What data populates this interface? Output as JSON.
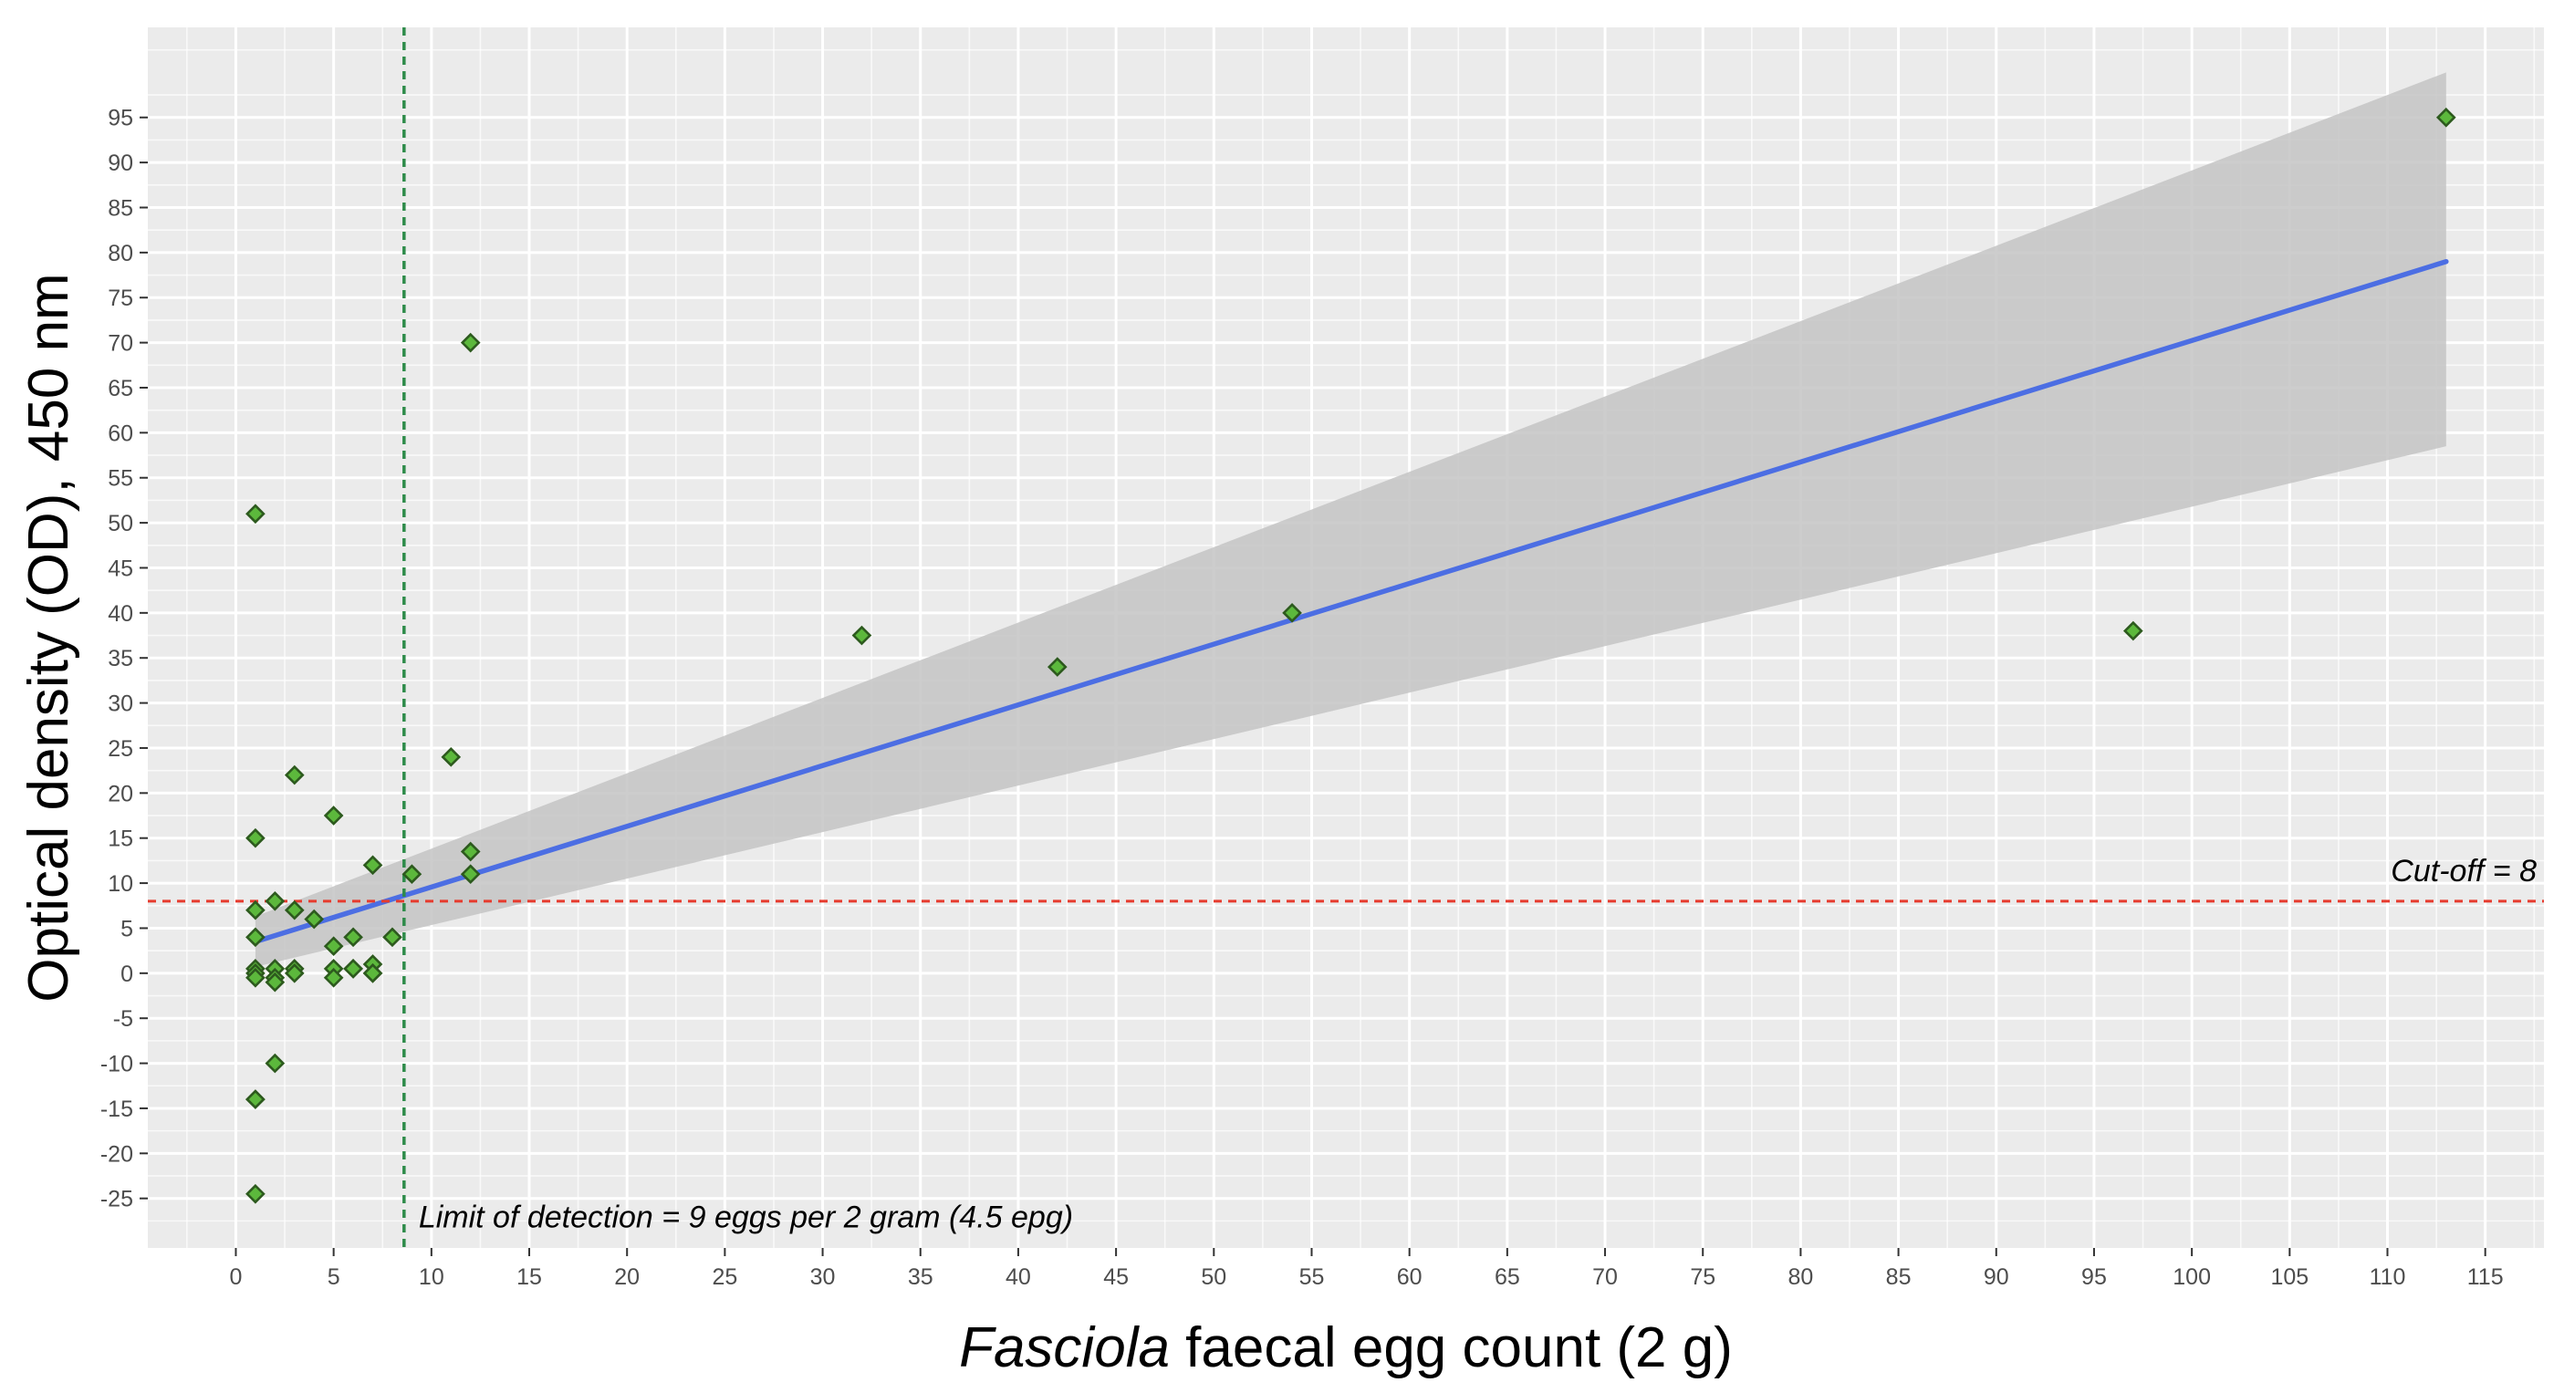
{
  "chart_data": {
    "type": "scatter",
    "xlabel_italic": "Fasciola",
    "xlabel_rest": " faecal egg count (2 g)",
    "ylabel": "Optical density (OD), 450 nm",
    "xlim": [
      -4.5,
      118
    ],
    "ylim": [
      -30.5,
      105
    ],
    "x_ticks": [
      0,
      5,
      10,
      15,
      20,
      25,
      30,
      35,
      40,
      45,
      50,
      55,
      60,
      65,
      70,
      75,
      80,
      85,
      90,
      95,
      100,
      105,
      110,
      115
    ],
    "y_ticks": [
      -25,
      -20,
      -15,
      -10,
      -5,
      0,
      5,
      10,
      15,
      20,
      25,
      30,
      35,
      40,
      45,
      50,
      55,
      60,
      65,
      70,
      75,
      80,
      85,
      90,
      95
    ],
    "grid": true,
    "points": {
      "x": [
        1,
        1,
        1,
        1,
        1,
        1,
        1,
        1,
        1,
        1,
        2,
        2,
        2,
        2,
        2,
        3,
        3,
        3,
        3,
        4,
        5,
        5,
        5,
        5,
        6,
        6,
        6,
        7,
        7,
        7,
        7,
        8,
        9,
        11,
        12,
        12,
        12,
        32,
        42,
        54,
        97,
        113
      ],
      "y": [
        51,
        15,
        7,
        4,
        0.5,
        0,
        -0.5,
        -14,
        -14,
        -24.5,
        8,
        0.5,
        -0.5,
        -1,
        -10,
        22,
        7,
        0.5,
        0,
        6,
        17.5,
        3,
        0.5,
        -0.5,
        4,
        0.5,
        0.5,
        12,
        1,
        0,
        0,
        4,
        11,
        24,
        70,
        13.5,
        11,
        37.5,
        34,
        40,
        38,
        95
      ],
      "color": "#5cb83c",
      "edge_color": "#2d5a1e"
    },
    "regression": {
      "x_start": 1,
      "x_end": 113,
      "y_start": 3.5,
      "y_end": 79,
      "ci_start_low": 0.7,
      "ci_start_high": 6.3,
      "ci_end_low": 58.5,
      "ci_end_high": 100,
      "color": "#4c6ee3",
      "ci_color": "#c4c4c4"
    },
    "cutoff": {
      "y": 8,
      "label": "Cut-off = 8",
      "color": "#e63b2e"
    },
    "detection_limit": {
      "x": 8.6,
      "label": "Limit of detection = 9 eggs per 2 gram (4.5 epg)",
      "color": "#2e8b4a"
    },
    "panel_background": "#ebebeb",
    "grid_color": "#ffffff"
  }
}
